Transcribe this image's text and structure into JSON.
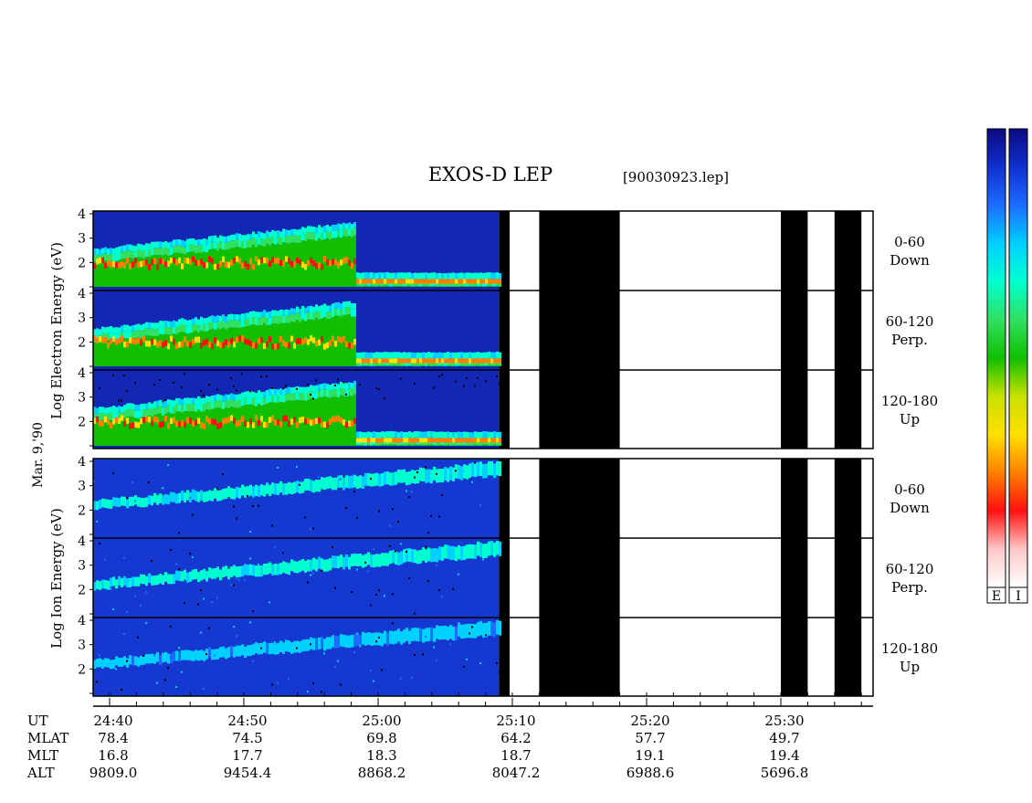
{
  "header": {
    "title": "EXOS-D LEP",
    "file": "[90030923.lep]"
  },
  "labels": {
    "date": "Mar. 9,'90",
    "electron_axis": "Log  Electron  Energy (eV)",
    "ion_axis": "Log  Ion  Energy (eV)"
  },
  "color_bars": {
    "electron": "E",
    "ion": "I"
  },
  "colors": {
    "black": "#000000",
    "white": "#ffffff",
    "electron_background": "#1228b4",
    "ion_background": "#1538d0",
    "colormap": [
      "#0a0a80",
      "#1030d0",
      "#1c6cff",
      "#00d0ff",
      "#00ffd0",
      "#30e060",
      "#10c000",
      "#c8e000",
      "#ffe000",
      "#ff8000",
      "#ff1010",
      "#ffc8c8",
      "#ffffff"
    ]
  },
  "chart_data": {
    "type": "heatmap",
    "x_ticks": [
      "24:40",
      "24:50",
      "25:00",
      "25:10",
      "25:20",
      "25:30"
    ],
    "y_ticks": [
      "4",
      "3",
      "2"
    ],
    "y_range_log_eV": [
      1,
      4
    ],
    "data_end_time": "25:09",
    "gaps": [
      {
        "start": "25:09",
        "end": "25:09.8",
        "status": "black"
      },
      {
        "start": "25:09.8",
        "end": "25:12",
        "status": "white"
      },
      {
        "start": "25:12",
        "end": "25:18",
        "status": "black"
      },
      {
        "start": "25:18",
        "end": "25:30",
        "status": "white"
      },
      {
        "start": "25:30",
        "end": "25:32",
        "status": "black"
      },
      {
        "start": "25:32",
        "end": "25:34",
        "status": "white"
      },
      {
        "start": "25:34",
        "end": "25:36",
        "status": "black"
      }
    ],
    "panels": [
      {
        "group": "electron",
        "angle": "0-60",
        "direction": "Down"
      },
      {
        "group": "electron",
        "angle": "60-120",
        "direction": "Perp."
      },
      {
        "group": "electron",
        "angle": "120-180",
        "direction": "Up"
      },
      {
        "group": "ion",
        "angle": "0-60",
        "direction": "Down"
      },
      {
        "group": "ion",
        "angle": "60-120",
        "direction": "Perp."
      },
      {
        "group": "ion",
        "angle": "120-180",
        "direction": "Up"
      }
    ],
    "ephemeris": {
      "rows": [
        {
          "label": "UT",
          "values": [
            "24:40",
            "24:50",
            "25:00",
            "25:10",
            "25:20",
            "25:30"
          ]
        },
        {
          "label": "MLAT",
          "values": [
            "78.4",
            "74.5",
            "69.8",
            "64.2",
            "57.7",
            "49.7"
          ]
        },
        {
          "label": "MLT",
          "values": [
            "16.8",
            "17.7",
            "18.3",
            "18.7",
            "19.1",
            "19.4"
          ]
        },
        {
          "label": "ALT",
          "values": [
            "9809.0",
            "9454.4",
            "8868.2",
            "8047.2",
            "6988.6",
            "5696.8"
          ]
        }
      ]
    }
  }
}
